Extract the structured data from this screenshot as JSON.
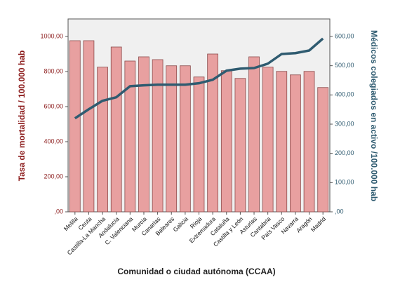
{
  "chart_data": {
    "type": "bar_line",
    "xlabel": "Comunidad o ciudad autónoma (CCAA)",
    "ylabel": "Tasa de mortalidad / 100.000 hab",
    "y2label": "Médicos colegiados en activo /100.000 hab",
    "categories": [
      "Melilla",
      "Ceuta",
      "Castilla-La Mancha",
      "Andalucía",
      "C. Valenciana",
      "Murcia",
      "Canarias",
      "Baleares",
      "Galicia",
      "Rioja",
      "Extremadura",
      "Cataluña",
      "Castilla y León",
      "Asturias",
      "Cantabria",
      "País Vasco",
      "Navarra",
      "Aragón",
      "Madrid"
    ],
    "series": [
      {
        "type": "bar",
        "color": "#e8a0a0",
        "values": [
          976,
          976,
          825,
          940,
          860,
          884,
          868,
          833,
          833,
          769,
          900,
          805,
          761,
          884,
          825,
          801,
          781,
          801,
          709
        ]
      },
      {
        "type": "line",
        "axis": "y2",
        "color": "#2f5b70",
        "values": [
          320,
          351,
          380,
          392,
          430,
          433,
          435,
          435,
          435,
          440,
          452,
          483,
          490,
          492,
          507,
          540,
          543,
          552,
          593
        ]
      }
    ],
    "ylim": [
      0,
      1100
    ],
    "yticks": [
      {
        "value": 0,
        "label": ",00"
      },
      {
        "value": 200,
        "label": "200,00"
      },
      {
        "value": 400,
        "label": "400,00"
      },
      {
        "value": 600,
        "label": "600,00"
      },
      {
        "value": 800,
        "label": "800,00"
      },
      {
        "value": 1000,
        "label": "1000,00"
      }
    ],
    "y2lim": [
      0,
      660
    ],
    "y2ticks": [
      {
        "value": 0,
        "label": ",00"
      },
      {
        "value": 100,
        "label": "100,00"
      },
      {
        "value": 200,
        "label": "200,00"
      },
      {
        "value": 300,
        "label": "300,00"
      },
      {
        "value": 400,
        "label": "400,00"
      },
      {
        "value": 500,
        "label": "500,00"
      },
      {
        "value": 600,
        "label": "600,00"
      }
    ]
  }
}
